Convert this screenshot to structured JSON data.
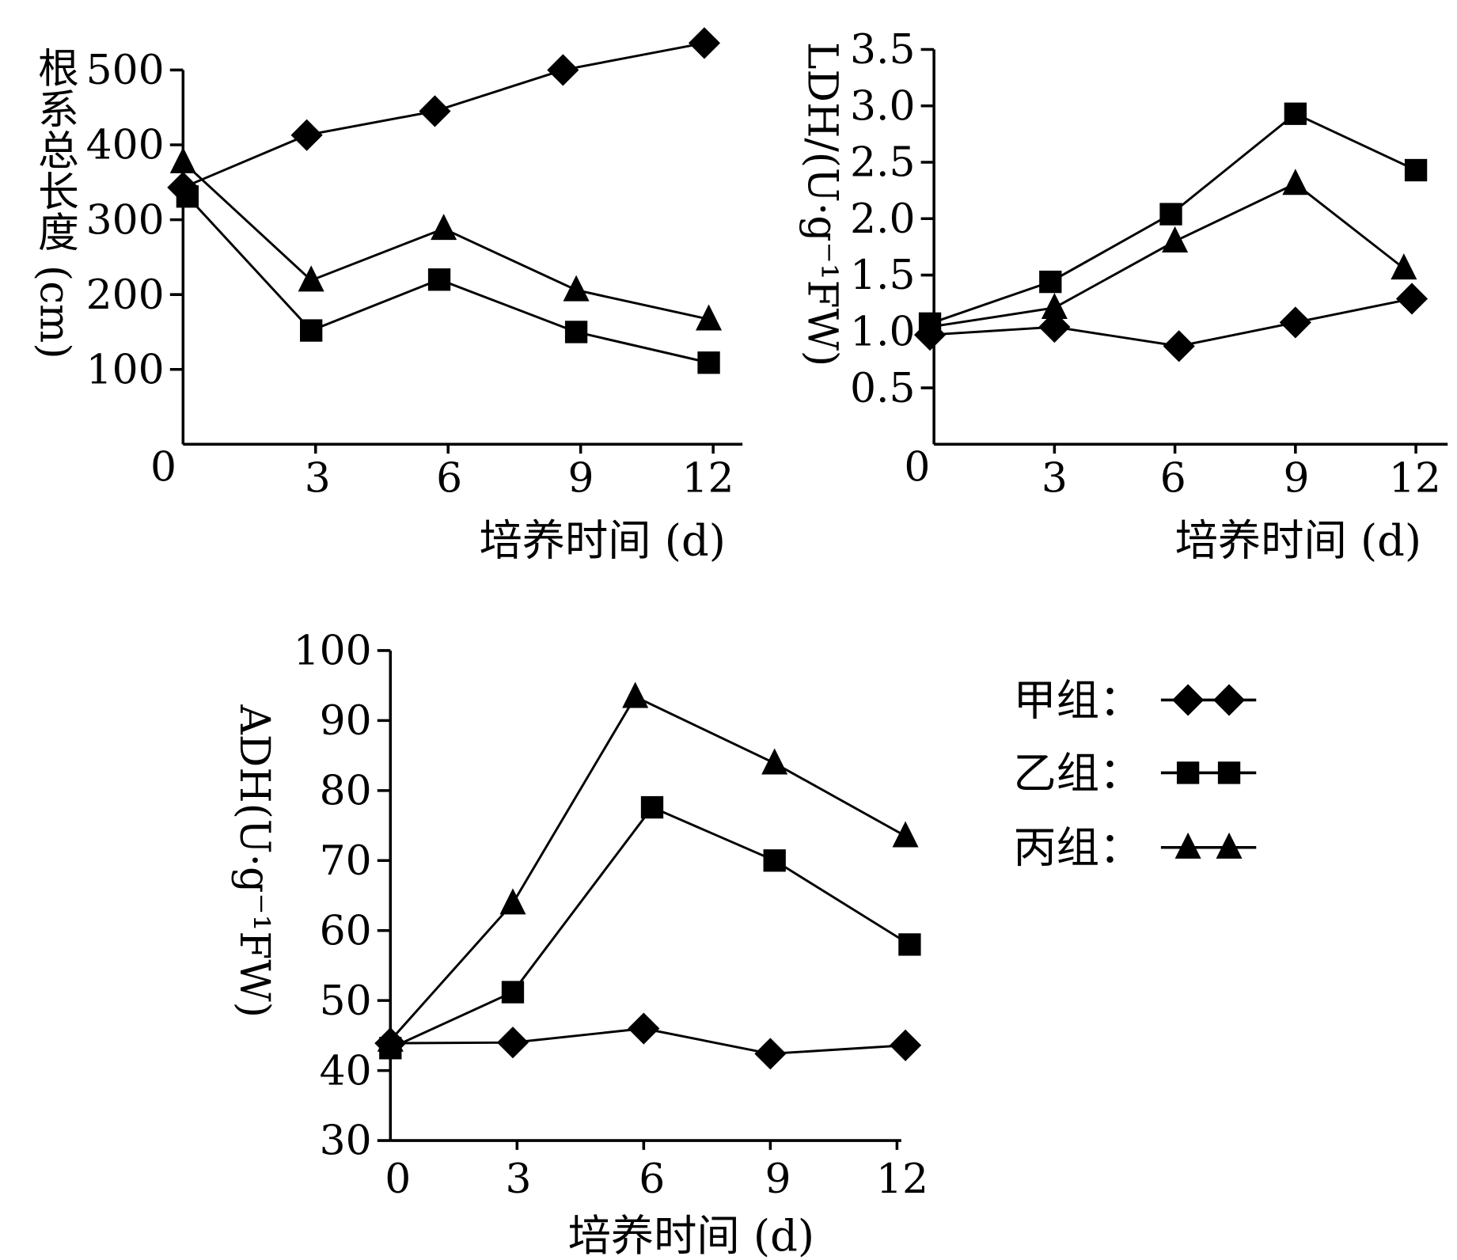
{
  "chart_data": [
    {
      "type": "line",
      "title": "",
      "xlabel": "培养时间 (d)",
      "ylabel": "根系总长度 (cm)",
      "xticks": [
        "0",
        "3",
        "6",
        "9",
        "12"
      ],
      "yticks": [
        "0",
        "100",
        "200",
        "300",
        "400",
        "500"
      ],
      "xlim": [
        0,
        12.6
      ],
      "ylim": [
        0,
        500
      ],
      "series": [
        {
          "name": "甲组",
          "marker": "diamond",
          "x": [
            0.0,
            2.8,
            5.7,
            8.6,
            11.8
          ],
          "y": [
            343,
            413,
            445,
            500,
            536
          ]
        },
        {
          "name": "乙组",
          "marker": "square",
          "x": [
            0.1,
            2.9,
            5.8,
            8.9,
            11.9
          ],
          "y": [
            331,
            152,
            220,
            150,
            109
          ]
        },
        {
          "name": "丙组",
          "marker": "triangle",
          "x": [
            0.0,
            2.9,
            5.9,
            8.9,
            11.9
          ],
          "y": [
            377,
            219,
            288,
            206,
            167
          ]
        }
      ]
    },
    {
      "type": "line",
      "title": "",
      "xlabel": "培养时间 (d)",
      "ylabel": "LDH/(U·g⁻¹FW)",
      "xticks": [
        "0",
        "3",
        "6",
        "9",
        "12"
      ],
      "yticks": [
        "0",
        "0.5",
        "1.0",
        "1.5",
        "2.0",
        "2.5",
        "3.0",
        "3.5"
      ],
      "xlim": [
        0,
        12.8
      ],
      "ylim": [
        0,
        3.5
      ],
      "series": [
        {
          "name": "甲组",
          "marker": "diamond",
          "x": [
            -0.1,
            3.0,
            6.1,
            9.0,
            11.9
          ],
          "y": [
            0.97,
            1.04,
            0.87,
            1.08,
            1.29
          ]
        },
        {
          "name": "乙组",
          "marker": "square",
          "x": [
            -0.1,
            2.9,
            5.9,
            9.0,
            12.0
          ],
          "y": [
            1.07,
            1.44,
            2.04,
            2.93,
            2.43
          ]
        },
        {
          "name": "丙组",
          "marker": "triangle",
          "x": [
            -0.1,
            3.0,
            6.0,
            9.0,
            11.7
          ],
          "y": [
            1.04,
            1.21,
            1.8,
            2.31,
            1.56
          ]
        }
      ]
    },
    {
      "type": "line",
      "title": "",
      "xlabel": "培养时间 (d)",
      "ylabel": "ADH(U·g⁻¹FW)",
      "xticks": [
        "0",
        "3",
        "6",
        "9",
        "12"
      ],
      "yticks": [
        "30",
        "40",
        "50",
        "60",
        "70",
        "80",
        "90",
        "100"
      ],
      "xlim": [
        0,
        12.1
      ],
      "ylim": [
        30,
        100
      ],
      "series": [
        {
          "name": "甲组",
          "marker": "diamond",
          "x": [
            0.0,
            2.9,
            6.0,
            9.0,
            12.2
          ],
          "y": [
            43.9,
            44.0,
            46.0,
            42.4,
            43.6
          ]
        },
        {
          "name": "乙组",
          "marker": "square",
          "x": [
            0.0,
            2.9,
            6.2,
            9.1,
            12.3
          ],
          "y": [
            43.2,
            51.2,
            77.6,
            70.0,
            58.0
          ]
        },
        {
          "name": "丙组",
          "marker": "triangle",
          "x": [
            0.0,
            2.9,
            5.8,
            9.1,
            12.2
          ],
          "y": [
            44.3,
            63.9,
            93.4,
            83.9,
            73.5
          ]
        }
      ]
    }
  ],
  "legend": {
    "placement": "right of bottom chart",
    "items": [
      {
        "label": "甲组：",
        "marker": "diamond"
      },
      {
        "label": "乙组：",
        "marker": "square"
      },
      {
        "label": "丙组：",
        "marker": "triangle"
      }
    ]
  }
}
